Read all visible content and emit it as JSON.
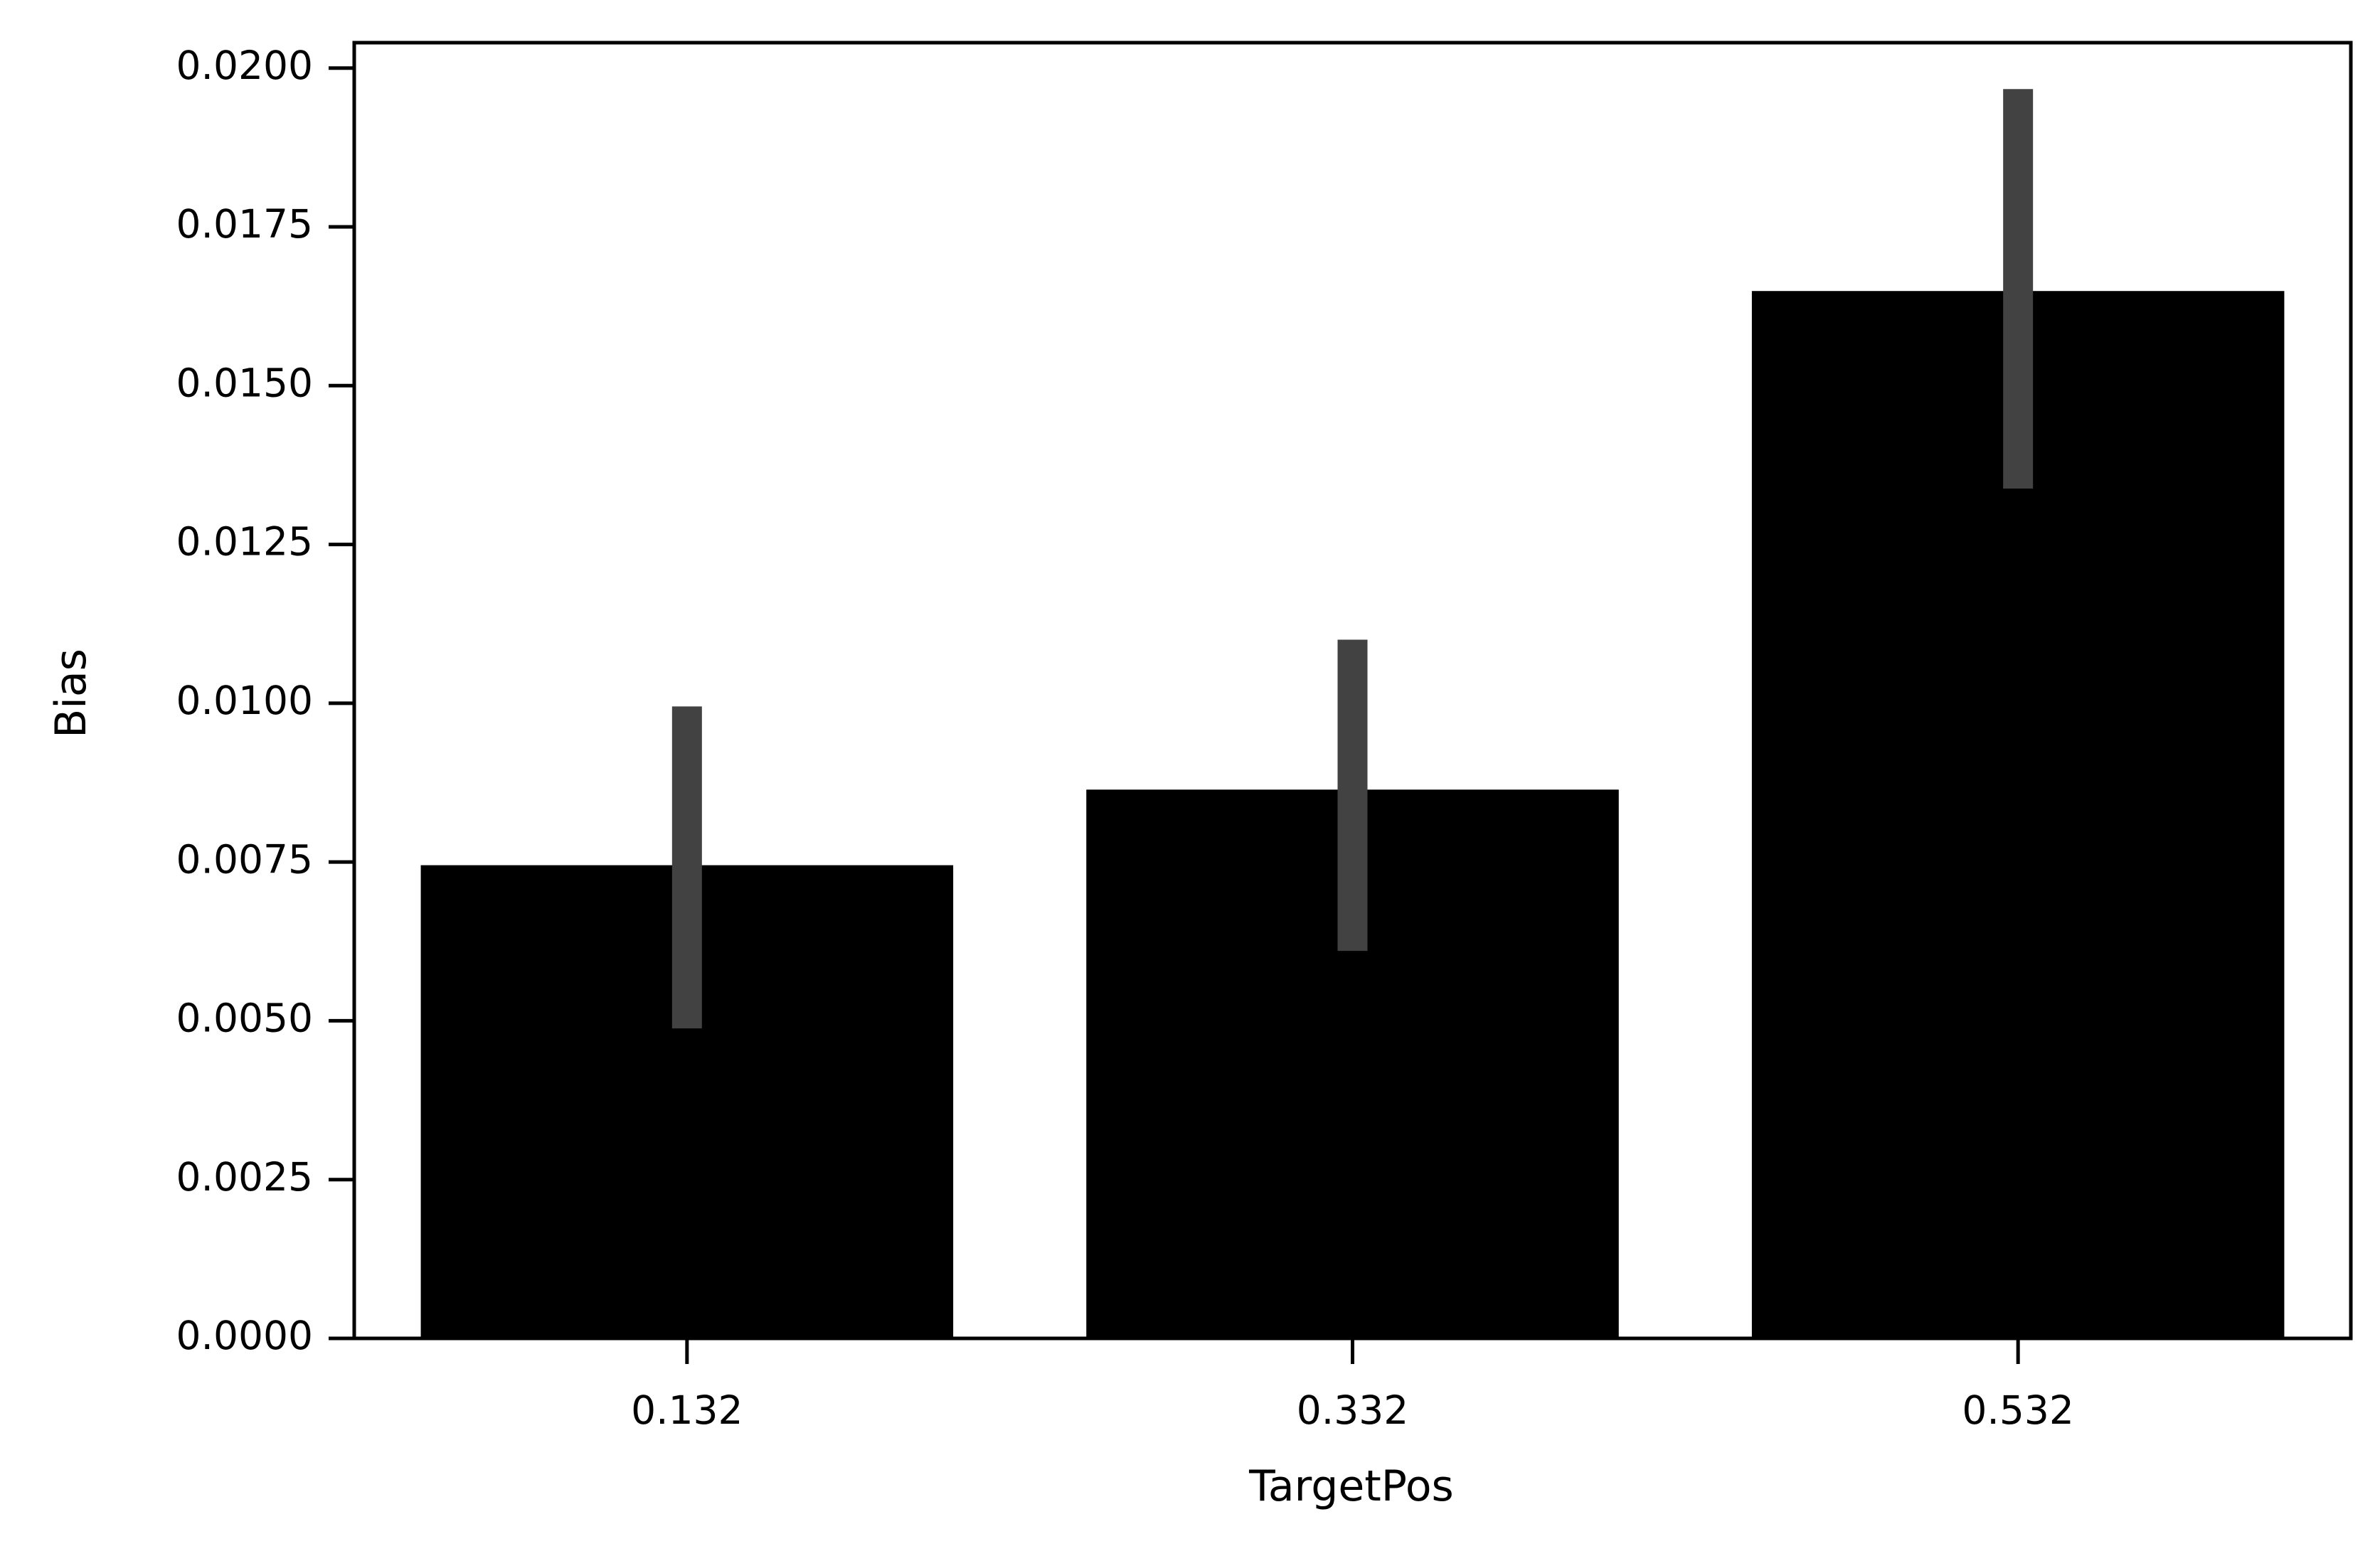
{
  "chart_data": {
    "type": "bar",
    "title": "",
    "xlabel": "TargetPos",
    "ylabel": "Bias",
    "categories": [
      "0.132",
      "0.332",
      "0.532"
    ],
    "values": [
      0.00745,
      0.00864,
      0.01649
    ],
    "error_bars": [
      {
        "low": 0.00488,
        "high": 0.00995
      },
      {
        "low": 0.0061,
        "high": 0.011
      },
      {
        "low": 0.01338,
        "high": 0.01967
      }
    ],
    "ylim": [
      0,
      0.0204
    ],
    "yticks": [
      "0.0000",
      "0.0025",
      "0.0050",
      "0.0075",
      "0.0100",
      "0.0125",
      "0.0150",
      "0.0175",
      "0.0200"
    ],
    "grid": false,
    "legend": "none",
    "colors": {
      "bar": "#000000",
      "error_bar": "#424242",
      "axes": "#000000",
      "background": "#ffffff"
    }
  }
}
